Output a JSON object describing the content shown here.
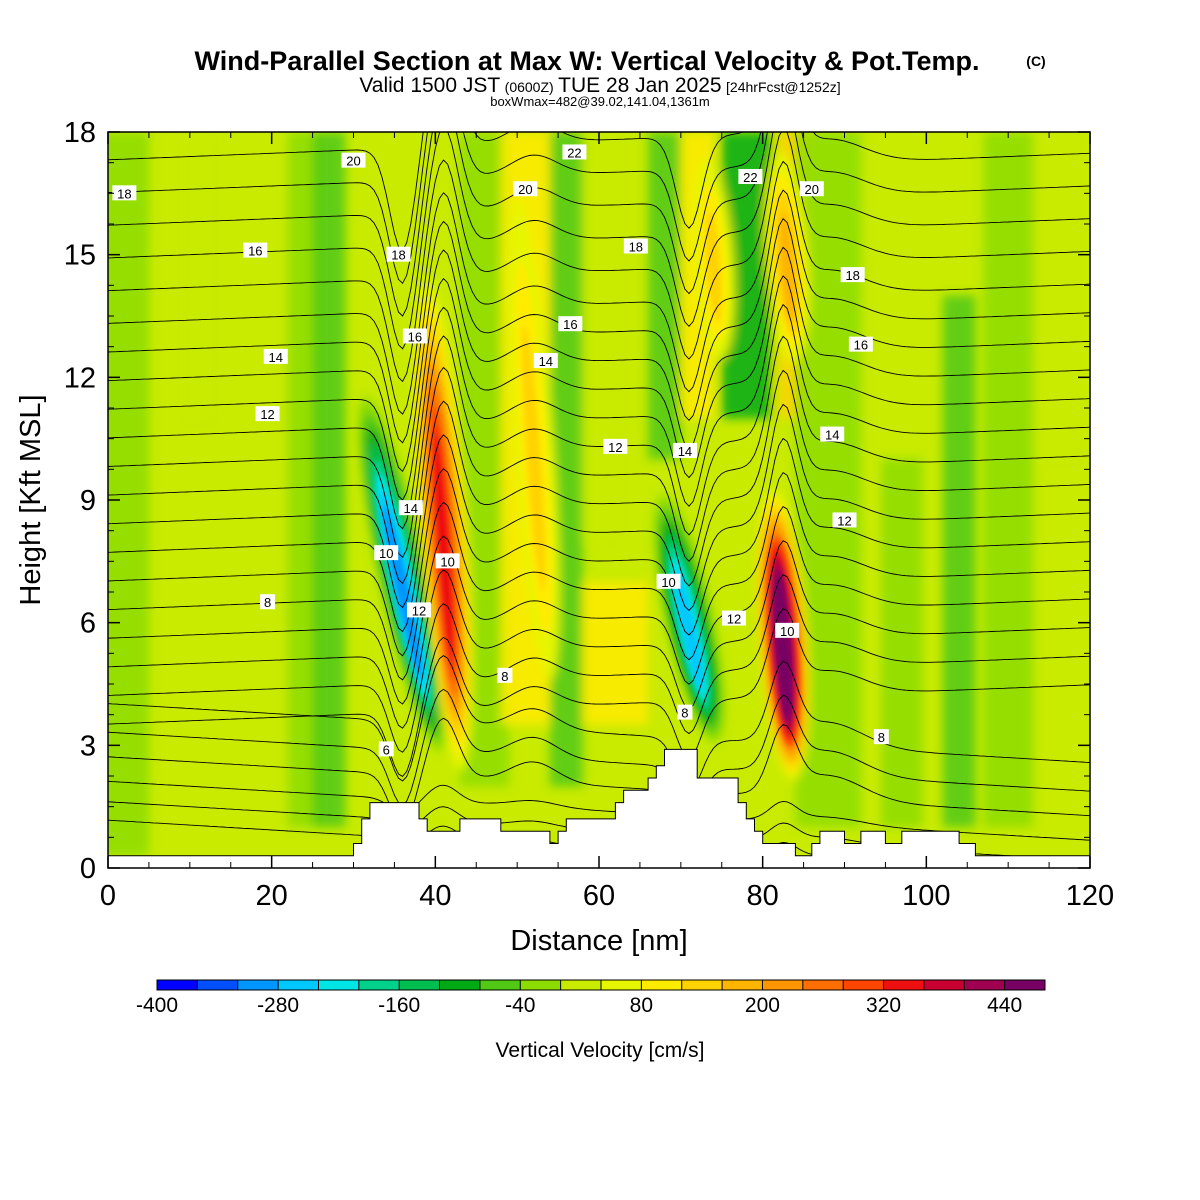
{
  "title": {
    "main": "Wind-Parallel Section at Max W: Vertical Velocity & Pot.Temp.",
    "copyright": "(C)",
    "valid_prefix": "Valid 1500 JST",
    "valid_utc": "(0600Z)",
    "valid_date": "TUE 28 Jan 2025",
    "forecast": "[24hrFcst@1252z]",
    "boxline": "boxWmax=482@39.02,141.04,1361m"
  },
  "chart_data": {
    "type": "heatmap",
    "xlabel": "Distance [nm]",
    "ylabel": "Height [Kft MSL]",
    "xlim": [
      0,
      120
    ],
    "ylim": [
      0,
      18
    ],
    "x_ticks": [
      0,
      20,
      40,
      60,
      80,
      100,
      120
    ],
    "y_ticks": [
      0,
      3,
      6,
      9,
      12,
      15,
      18
    ],
    "colorbar": {
      "label": "Vertical Velocity [cm/s]",
      "min": -400,
      "max": 480,
      "step": 40,
      "tick_labels": [
        -400,
        -280,
        -160,
        -40,
        80,
        200,
        320,
        440
      ],
      "colors": [
        "#0000ff",
        "#0050ff",
        "#0096ff",
        "#00c8ff",
        "#00e6e6",
        "#00d28c",
        "#00be50",
        "#00aa14",
        "#50c814",
        "#8cdc00",
        "#c8eb00",
        "#e6f500",
        "#ffeb00",
        "#ffd200",
        "#ffb400",
        "#ff9600",
        "#ff6e00",
        "#ff4600",
        "#ee1010",
        "#c80032",
        "#a00050",
        "#780064"
      ]
    },
    "vertical_velocity_features": [
      {
        "x": 36,
        "y_bottom": 2.5,
        "y_top": 12,
        "peak": -320
      },
      {
        "x": 41,
        "y_bottom": 2.0,
        "y_top": 15,
        "peak": 320
      },
      {
        "x": 71,
        "y_bottom": 2.8,
        "y_top": 9.5,
        "peak": -280
      },
      {
        "x": 82.5,
        "y_bottom": 2.0,
        "y_top": 9.5,
        "peak": 480
      },
      {
        "x": 52,
        "y_bottom": 3.5,
        "y_top": 18,
        "peak": 120
      },
      {
        "x": 74,
        "y_bottom": 12,
        "y_top": 18,
        "peak": 120
      },
      {
        "x": 83,
        "y_bottom": 12,
        "y_top": 18,
        "peak": 160
      }
    ],
    "terrain": [
      [
        0,
        0.3
      ],
      [
        30,
        0.3
      ],
      [
        30,
        0.6
      ],
      [
        31,
        0.6
      ],
      [
        31,
        1.2
      ],
      [
        32,
        1.2
      ],
      [
        32,
        1.6
      ],
      [
        38,
        1.6
      ],
      [
        38,
        1.2
      ],
      [
        39,
        1.2
      ],
      [
        39,
        0.9
      ],
      [
        43,
        0.9
      ],
      [
        43,
        1.2
      ],
      [
        48,
        1.2
      ],
      [
        48,
        0.9
      ],
      [
        49,
        0.9
      ],
      [
        49,
        0.9
      ],
      [
        54,
        0.9
      ],
      [
        54,
        0.6
      ],
      [
        55,
        0.6
      ],
      [
        55,
        0.9
      ],
      [
        56,
        0.9
      ],
      [
        56,
        1.2
      ],
      [
        62,
        1.2
      ],
      [
        62,
        1.6
      ],
      [
        63,
        1.6
      ],
      [
        63,
        1.9
      ],
      [
        66,
        1.9
      ],
      [
        66,
        2.2
      ],
      [
        67,
        2.2
      ],
      [
        67,
        2.5
      ],
      [
        68,
        2.5
      ],
      [
        68,
        2.9
      ],
      [
        72,
        2.9
      ],
      [
        72,
        2.2
      ],
      [
        77,
        2.2
      ],
      [
        77,
        1.6
      ],
      [
        78,
        1.6
      ],
      [
        78,
        1.2
      ],
      [
        79,
        1.2
      ],
      [
        79,
        0.9
      ],
      [
        80,
        0.9
      ],
      [
        80,
        0.6
      ],
      [
        81,
        0.6
      ],
      [
        81,
        0.6
      ],
      [
        84,
        0.6
      ],
      [
        84,
        0.3
      ],
      [
        86,
        0.3
      ],
      [
        86,
        0.6
      ],
      [
        87,
        0.6
      ],
      [
        87,
        0.9
      ],
      [
        90,
        0.9
      ],
      [
        90,
        0.6
      ],
      [
        92,
        0.6
      ],
      [
        92,
        0.9
      ],
      [
        95,
        0.9
      ],
      [
        95,
        0.6
      ],
      [
        97,
        0.6
      ],
      [
        97,
        0.9
      ],
      [
        104,
        0.9
      ],
      [
        104,
        0.6
      ],
      [
        106,
        0.6
      ],
      [
        106,
        0.3
      ],
      [
        120,
        0.3
      ]
    ],
    "theta_labels": [
      {
        "x": 2,
        "y": 16.5,
        "text": "18"
      },
      {
        "x": 18,
        "y": 15.1,
        "text": "16"
      },
      {
        "x": 20.5,
        "y": 12.5,
        "text": "14"
      },
      {
        "x": 19.5,
        "y": 11.1,
        "text": "12"
      },
      {
        "x": 19.5,
        "y": 6.5,
        "text": "8"
      },
      {
        "x": 30,
        "y": 17.3,
        "text": "20"
      },
      {
        "x": 35.5,
        "y": 15.0,
        "text": "18"
      },
      {
        "x": 37.5,
        "y": 13.0,
        "text": "16"
      },
      {
        "x": 37,
        "y": 8.8,
        "text": "14"
      },
      {
        "x": 34,
        "y": 7.7,
        "text": "10"
      },
      {
        "x": 38,
        "y": 6.3,
        "text": "12"
      },
      {
        "x": 41.5,
        "y": 7.5,
        "text": "10"
      },
      {
        "x": 34,
        "y": 2.9,
        "text": "6"
      },
      {
        "x": 48.5,
        "y": 4.7,
        "text": "8"
      },
      {
        "x": 51,
        "y": 16.6,
        "text": "20"
      },
      {
        "x": 57,
        "y": 17.5,
        "text": "22"
      },
      {
        "x": 64.5,
        "y": 15.2,
        "text": "18"
      },
      {
        "x": 56.5,
        "y": 13.3,
        "text": "16"
      },
      {
        "x": 53.5,
        "y": 12.4,
        "text": "14"
      },
      {
        "x": 62,
        "y": 10.3,
        "text": "12"
      },
      {
        "x": 70.5,
        "y": 10.2,
        "text": "14"
      },
      {
        "x": 68.5,
        "y": 7.0,
        "text": "10"
      },
      {
        "x": 76.5,
        "y": 6.1,
        "text": "12"
      },
      {
        "x": 70.5,
        "y": 3.8,
        "text": "8"
      },
      {
        "x": 78.5,
        "y": 16.9,
        "text": "22"
      },
      {
        "x": 86,
        "y": 16.6,
        "text": "20"
      },
      {
        "x": 91,
        "y": 14.5,
        "text": "18"
      },
      {
        "x": 92,
        "y": 12.8,
        "text": "16"
      },
      {
        "x": 88.5,
        "y": 10.6,
        "text": "14"
      },
      {
        "x": 90,
        "y": 8.5,
        "text": "12"
      },
      {
        "x": 83,
        "y": 5.8,
        "text": "10"
      },
      {
        "x": 94.5,
        "y": 3.2,
        "text": "8"
      }
    ]
  }
}
